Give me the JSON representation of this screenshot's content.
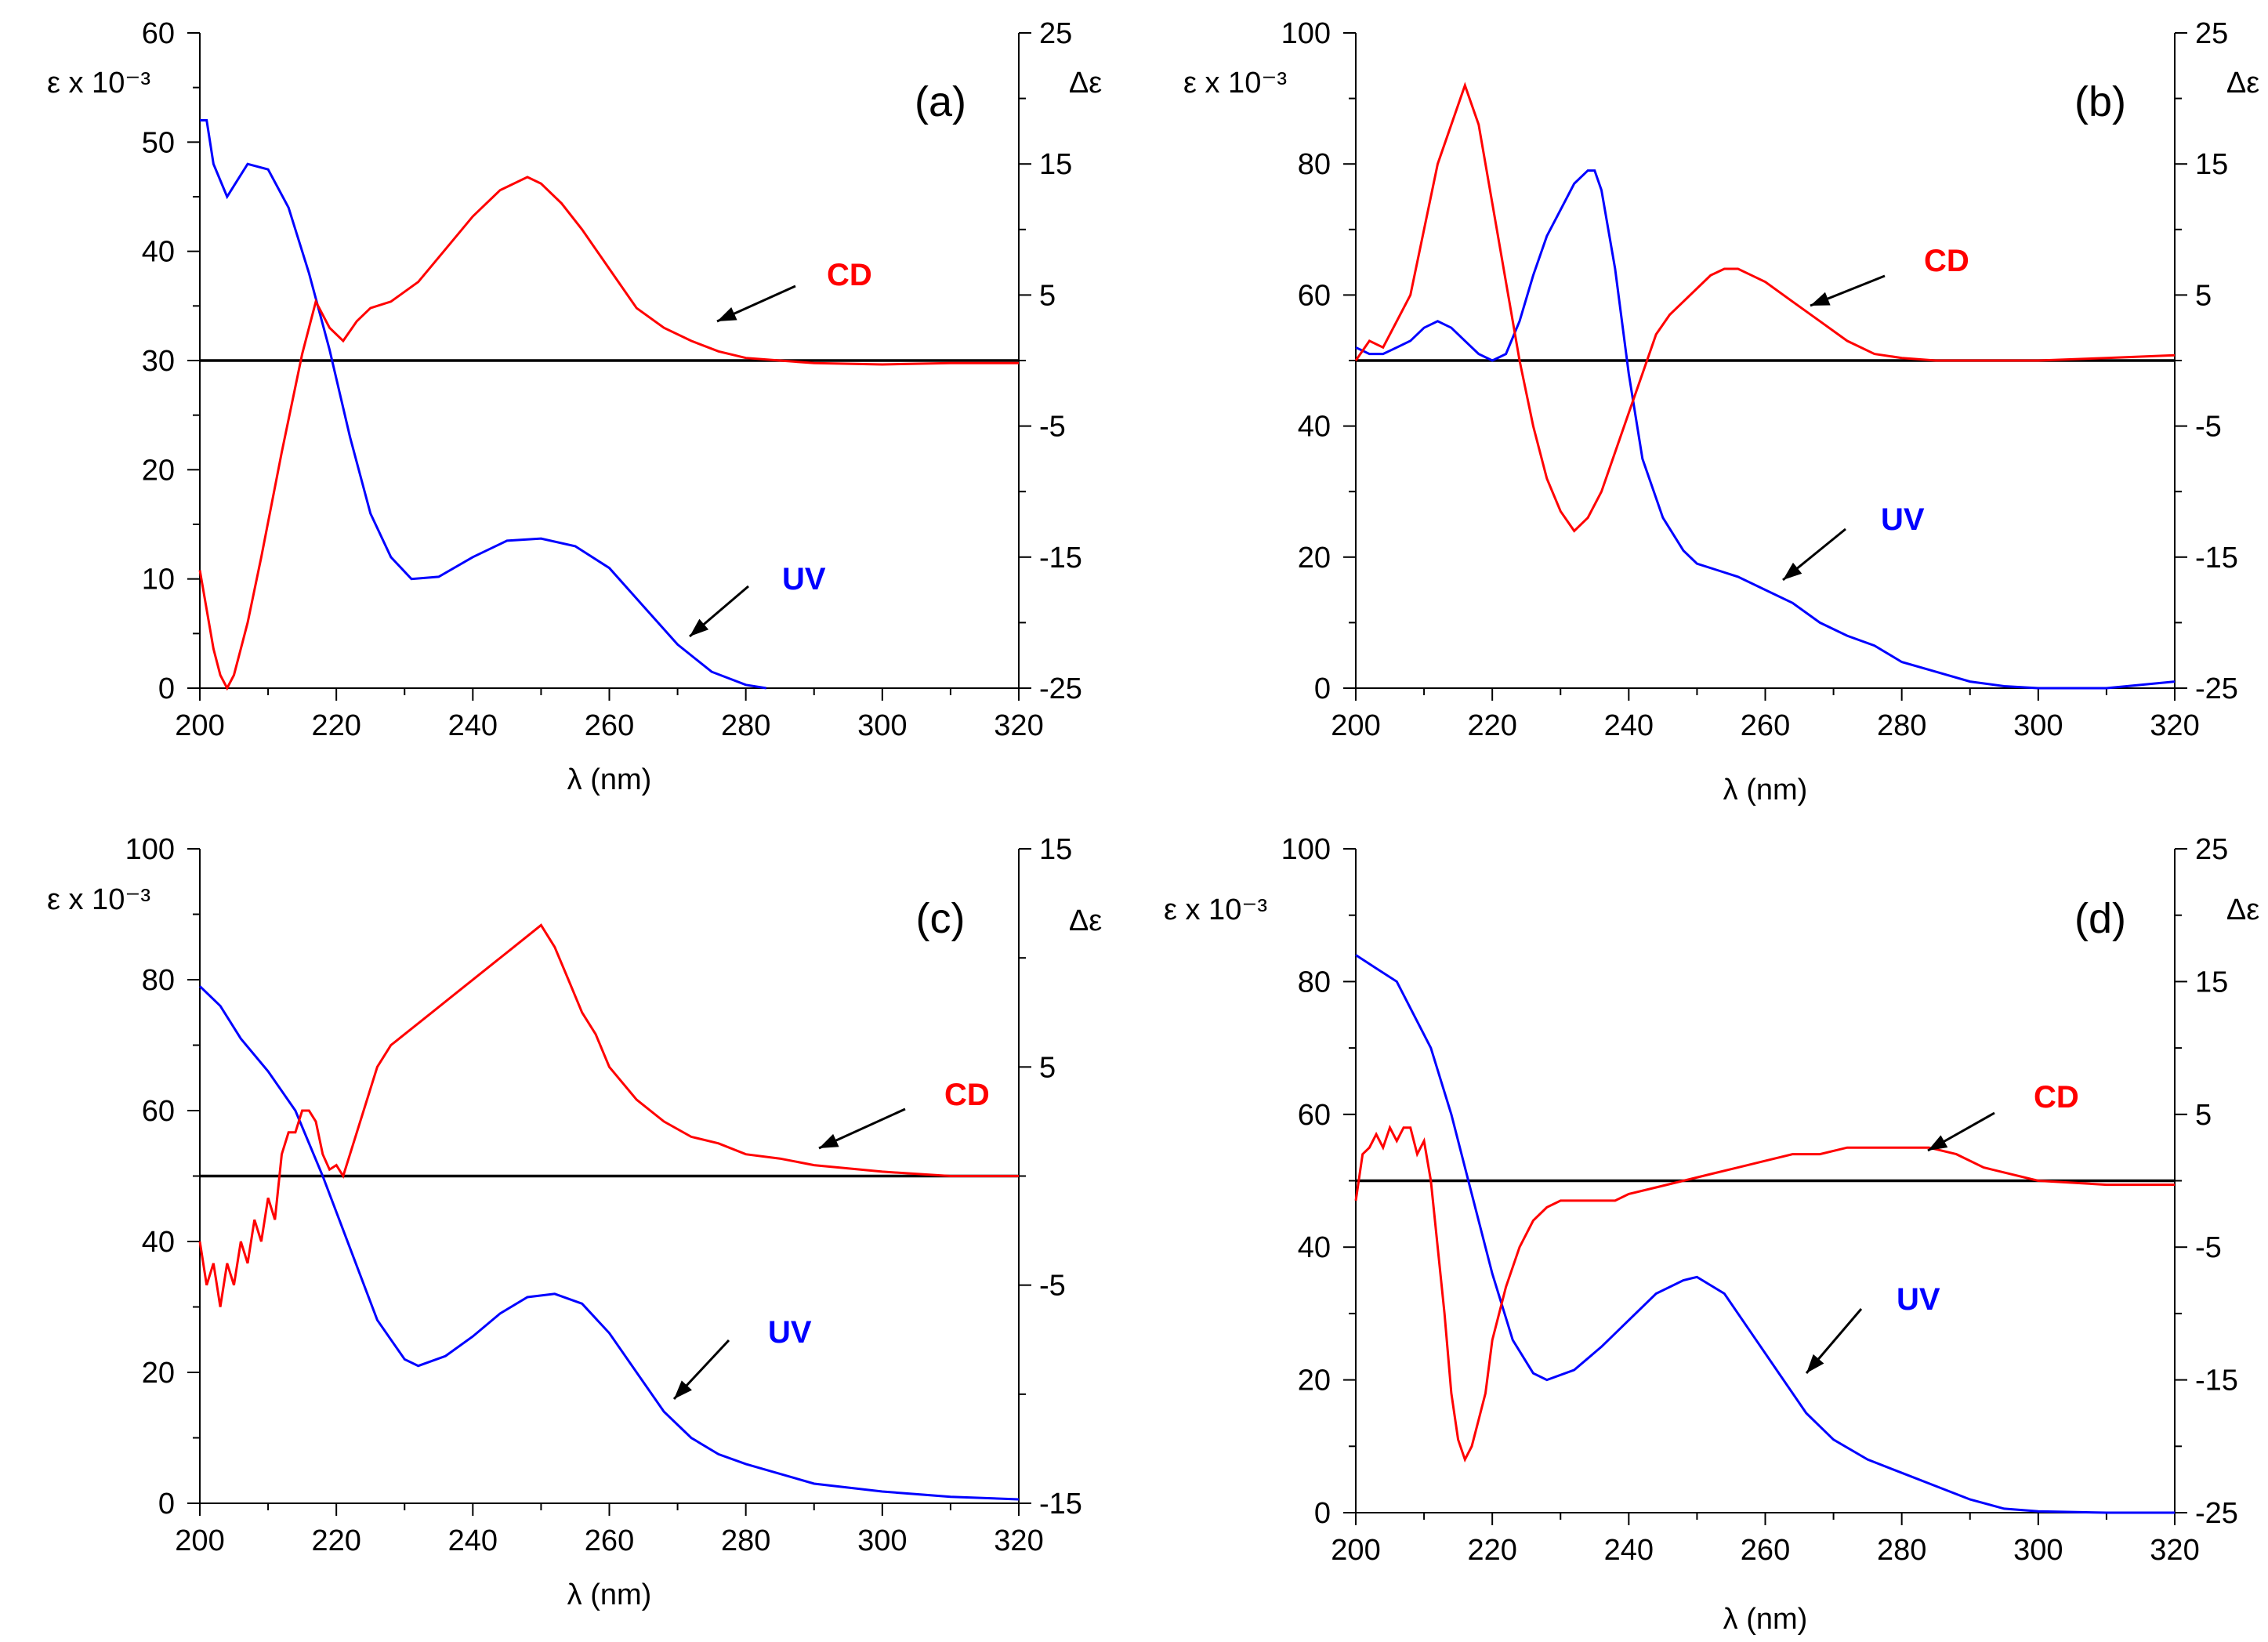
{
  "chart_data": [
    {
      "type": "line",
      "panel_label": "(a)",
      "xlabel": "λ (nm)",
      "xlim": [
        200,
        320
      ],
      "x_ticks": [
        200,
        220,
        240,
        260,
        280,
        300,
        320
      ],
      "ylabel_left": "ε x 10⁻³",
      "ylim_left": [
        0,
        60
      ],
      "y_ticks_left": [
        0,
        10,
        20,
        30,
        40,
        50,
        60
      ],
      "ylabel_right": "Δε",
      "ylim_right": [
        -25,
        25
      ],
      "y_ticks_right": [
        -25,
        -15,
        -5,
        5,
        15,
        25
      ],
      "series": [
        {
          "name": "UV",
          "axis": "left",
          "color": "#0000ff",
          "x": [
            200,
            201,
            202,
            204,
            205,
            207,
            210,
            213,
            216,
            219,
            222,
            225,
            228,
            231,
            235,
            240,
            245,
            250,
            255,
            260,
            265,
            270,
            275,
            280,
            283
          ],
          "y": [
            52,
            52,
            48,
            45,
            46,
            48,
            47.5,
            44,
            38,
            31,
            23,
            16,
            12,
            10,
            10.2,
            12,
            13.5,
            13.7,
            13,
            11,
            7.5,
            4,
            1.5,
            0.3,
            0
          ]
        },
        {
          "name": "CD",
          "axis": "right",
          "color": "#ff0000",
          "x": [
            200,
            202,
            203,
            204,
            205,
            206,
            207,
            209,
            212,
            215,
            217,
            219,
            221,
            223,
            225,
            228,
            232,
            236,
            240,
            244,
            248,
            250,
            253,
            256,
            260,
            264,
            268,
            272,
            276,
            280,
            285,
            290,
            300,
            310,
            320
          ],
          "y": [
            -16,
            -22,
            -24,
            -25,
            -24,
            -22,
            -20,
            -15,
            -7,
            0.5,
            4.5,
            2.5,
            1.5,
            3,
            4,
            4.5,
            6,
            8.5,
            11,
            13,
            14,
            13.5,
            12,
            10,
            7,
            4,
            2.5,
            1.5,
            0.7,
            0.2,
            0,
            -0.2,
            -0.3,
            -0.2,
            -0.2
          ]
        }
      ],
      "labels": [
        "CD",
        "UV"
      ]
    },
    {
      "type": "line",
      "panel_label": "(b)",
      "xlabel": "λ (nm)",
      "xlim": [
        200,
        320
      ],
      "x_ticks": [
        200,
        220,
        240,
        260,
        280,
        300,
        320
      ],
      "ylabel_left": "ε x 10⁻³",
      "ylim_left": [
        0,
        100
      ],
      "y_ticks_left": [
        0,
        20,
        40,
        60,
        80,
        100
      ],
      "ylabel_right": "Δε",
      "ylim_right": [
        -25,
        25
      ],
      "y_ticks_right": [
        -25,
        -15,
        -5,
        5,
        15,
        25
      ],
      "series": [
        {
          "name": "UV",
          "axis": "left",
          "color": "#0000ff",
          "x": [
            200,
            202,
            204,
            206,
            208,
            210,
            212,
            214,
            216,
            218,
            220,
            222,
            224,
            226,
            228,
            230,
            232,
            234,
            235,
            236,
            238,
            240,
            242,
            245,
            248,
            250,
            253,
            256,
            260,
            264,
            268,
            272,
            276,
            280,
            285,
            290,
            295,
            300,
            310,
            320
          ],
          "y": [
            52,
            51,
            51,
            52,
            53,
            55,
            56,
            55,
            53,
            51,
            50,
            51,
            56,
            63,
            69,
            73,
            77,
            79,
            79,
            76,
            64,
            48,
            35,
            26,
            21,
            19,
            18,
            17,
            15,
            13,
            10,
            8,
            6.5,
            4,
            2.5,
            1,
            0.3,
            0,
            0,
            1
          ]
        },
        {
          "name": "CD",
          "axis": "right",
          "color": "#ff0000",
          "x": [
            200,
            202,
            204,
            206,
            208,
            210,
            212,
            214,
            216,
            218,
            220,
            222,
            224,
            226,
            228,
            230,
            232,
            234,
            236,
            238,
            240,
            242,
            244,
            246,
            248,
            250,
            252,
            254,
            256,
            258,
            260,
            264,
            268,
            272,
            276,
            280,
            285,
            290,
            300,
            310,
            320
          ],
          "y": [
            0,
            1.5,
            1,
            3,
            5,
            10,
            15,
            18,
            21,
            18,
            12,
            6,
            0,
            -5,
            -9,
            -11.5,
            -13,
            -12,
            -10,
            -7,
            -4,
            -1,
            2,
            3.5,
            4.5,
            5.5,
            6.5,
            7,
            7,
            6.5,
            6,
            4.5,
            3,
            1.5,
            0.5,
            0.2,
            0,
            0,
            0,
            0.2,
            0.4
          ]
        }
      ],
      "labels": [
        "CD",
        "UV"
      ]
    },
    {
      "type": "line",
      "panel_label": "(c)",
      "xlabel": "λ  (nm)",
      "xlim": [
        200,
        320
      ],
      "x_ticks": [
        200,
        220,
        240,
        260,
        280,
        300,
        320
      ],
      "ylabel_left": "ε x 10⁻³",
      "ylim_left": [
        0,
        100
      ],
      "y_ticks_left": [
        0,
        20,
        40,
        60,
        80,
        100
      ],
      "ylabel_right": "Δε",
      "ylim_right": [
        -15,
        15
      ],
      "y_ticks_right": [
        -15,
        -5,
        5,
        15
      ],
      "series": [
        {
          "name": "UV",
          "axis": "left",
          "color": "#0000ff",
          "x": [
            200,
            203,
            206,
            210,
            214,
            218,
            222,
            226,
            230,
            232,
            236,
            240,
            244,
            248,
            252,
            256,
            260,
            264,
            268,
            272,
            276,
            280,
            285,
            290,
            300,
            310,
            320
          ],
          "y": [
            79,
            76,
            71,
            66,
            60,
            50,
            39,
            28,
            22,
            21,
            22.5,
            25.5,
            29,
            31.5,
            32,
            30.5,
            26,
            20,
            14,
            10,
            7.5,
            6,
            4.5,
            3,
            1.8,
            1,
            0.6
          ]
        },
        {
          "name": "CD",
          "axis": "right",
          "color": "#ff0000",
          "x": [
            200,
            201,
            202,
            203,
            204,
            205,
            206,
            207,
            208,
            209,
            210,
            211,
            212,
            213,
            214,
            215,
            216,
            217,
            218,
            219,
            220,
            221,
            222,
            224,
            226,
            228,
            230,
            234,
            238,
            242,
            246,
            250,
            252,
            254,
            256,
            258,
            260,
            264,
            268,
            272,
            276,
            280,
            285,
            290,
            300,
            310,
            320
          ],
          "y": [
            -3,
            -5,
            -4,
            -6,
            -4,
            -5,
            -3,
            -4,
            -2,
            -3,
            -1,
            -2,
            1,
            2,
            2,
            3,
            3,
            2.5,
            1,
            0.3,
            0.5,
            0,
            1,
            3,
            5,
            6,
            6.5,
            7.5,
            8.5,
            9.5,
            10.5,
            11.5,
            10.5,
            9,
            7.5,
            6.5,
            5,
            3.5,
            2.5,
            1.8,
            1.5,
            1,
            0.8,
            0.5,
            0.2,
            0,
            0
          ]
        }
      ],
      "labels": [
        "CD",
        "UV"
      ]
    },
    {
      "type": "line",
      "panel_label": "(d)",
      "xlabel": "λ (nm)",
      "xlim": [
        200,
        320
      ],
      "x_ticks": [
        200,
        220,
        240,
        260,
        280,
        300,
        320
      ],
      "ylabel_left": "ε x 10⁻³",
      "ylim_left": [
        0,
        100
      ],
      "y_ticks_left": [
        0,
        20,
        40,
        60,
        80,
        100
      ],
      "ylabel_right": "Δε",
      "ylim_right": [
        -25,
        25
      ],
      "y_ticks_right": [
        -25,
        -15,
        -5,
        5,
        15,
        25
      ],
      "series": [
        {
          "name": "UV",
          "axis": "left",
          "color": "#0000ff",
          "x": [
            200,
            203,
            206,
            208,
            211,
            214,
            217,
            220,
            223,
            226,
            228,
            232,
            236,
            240,
            244,
            248,
            250,
            254,
            258,
            262,
            266,
            270,
            275,
            280,
            285,
            290,
            295,
            300,
            310,
            320
          ],
          "y": [
            84,
            82,
            80,
            76,
            70,
            60,
            48,
            36,
            26,
            21,
            20,
            21.5,
            25,
            29,
            33,
            35,
            35.5,
            33,
            27,
            21,
            15,
            11,
            8,
            6,
            4,
            2,
            0.6,
            0.2,
            0,
            0
          ]
        },
        {
          "name": "CD",
          "axis": "right",
          "color": "#ff0000",
          "x": [
            200,
            201,
            202,
            203,
            204,
            205,
            206,
            207,
            208,
            209,
            210,
            211,
            212,
            213,
            214,
            215,
            216,
            217,
            218,
            219,
            220,
            222,
            224,
            226,
            228,
            230,
            234,
            238,
            240,
            244,
            248,
            252,
            256,
            260,
            264,
            268,
            272,
            276,
            280,
            284,
            288,
            292,
            300,
            310,
            320
          ],
          "y": [
            -1.5,
            2,
            2.5,
            3.5,
            2.5,
            4,
            3,
            4,
            4,
            2,
            3,
            0,
            -5,
            -10,
            -16,
            -19.5,
            -21,
            -20,
            -18,
            -16,
            -12,
            -8,
            -5,
            -3,
            -2,
            -1.5,
            -1.5,
            -1.5,
            -1,
            -0.5,
            0,
            0.5,
            1,
            1.5,
            2,
            2,
            2.5,
            2.5,
            2.5,
            2.5,
            2,
            1,
            0,
            -0.3,
            -0.3
          ]
        }
      ],
      "labels": [
        "CD",
        "UV"
      ]
    }
  ]
}
